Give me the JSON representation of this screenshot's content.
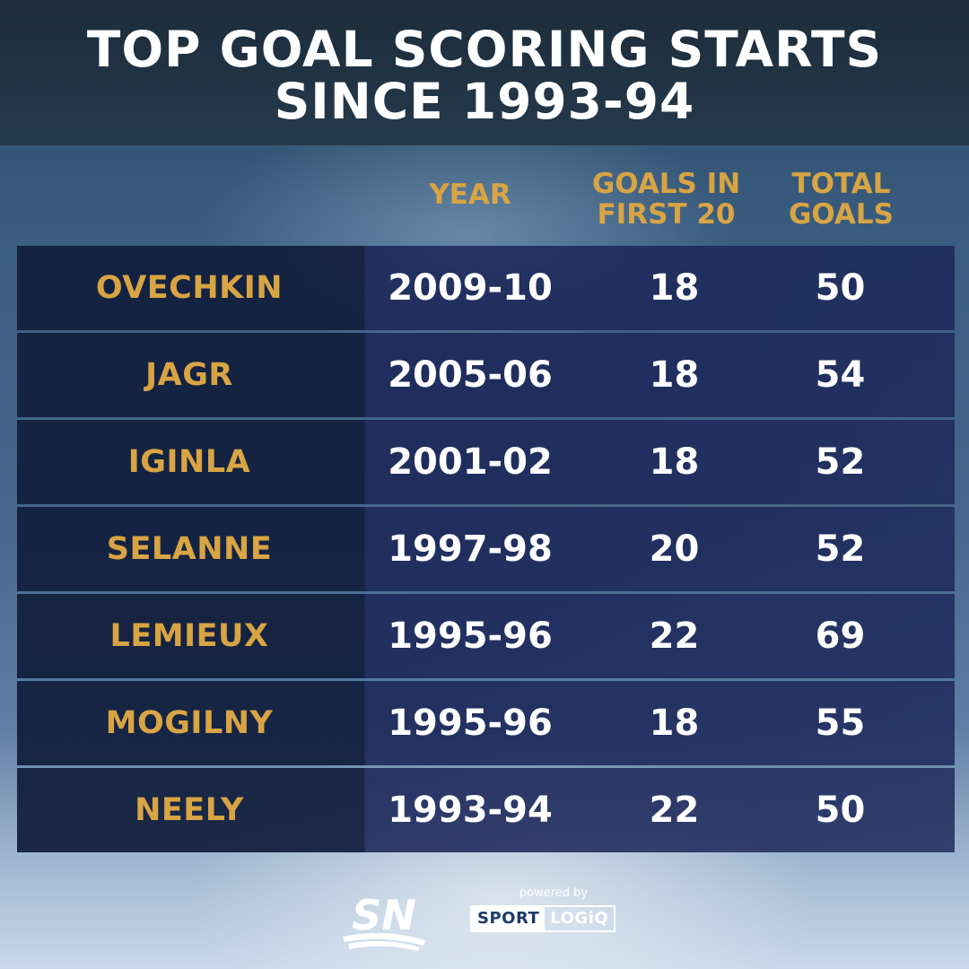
{
  "title": {
    "line1": "TOP GOAL SCORING STARTS",
    "line2": "SINCE 1993-94"
  },
  "columns": {
    "year": "YEAR",
    "goals_first20_line1": "GOALS IN",
    "goals_first20_line2": "FIRST 20",
    "total_line1": "TOTAL",
    "total_line2": "GOALS"
  },
  "rows": [
    {
      "name": "OVECHKIN",
      "year": "2009-10",
      "goals_first20": "18",
      "total": "50"
    },
    {
      "name": "JAGR",
      "year": "2005-06",
      "goals_first20": "18",
      "total": "54"
    },
    {
      "name": "IGINLA",
      "year": "2001-02",
      "goals_first20": "18",
      "total": "52"
    },
    {
      "name": "SELANNE",
      "year": "1997-98",
      "goals_first20": "20",
      "total": "52"
    },
    {
      "name": "LEMIEUX",
      "year": "1995-96",
      "goals_first20": "22",
      "total": "69"
    },
    {
      "name": "MOGILNY",
      "year": "1995-96",
      "goals_first20": "18",
      "total": "55"
    },
    {
      "name": "NEELY",
      "year": "1993-94",
      "goals_first20": "22",
      "total": "50"
    }
  ],
  "footer": {
    "logo_text": "SN",
    "powered_by": "powered by",
    "brand_part1": "SPORT",
    "brand_part2": "LOGiQ"
  },
  "colors": {
    "accent_gold": "#d8a444",
    "row_dark": "#111e3c",
    "row_navy": "#1b2658"
  }
}
